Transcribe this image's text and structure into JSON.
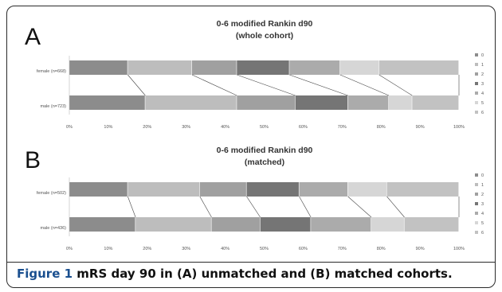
{
  "figure": {
    "caption_label": "Figure 1",
    "caption_text": "mRS day 90 in (A) unmatched and (B) matched cohorts."
  },
  "colors": {
    "categories": [
      "#8c8c8c",
      "#bdbdbd",
      "#a0a0a0",
      "#757575",
      "#ababab",
      "#d6d6d6",
      "#c2c2c2"
    ]
  },
  "chart_data": [
    {
      "type": "bar",
      "stacked": "100%",
      "orientation": "horizontal",
      "panel_label": "A",
      "title": "0-6 modified Rankin d90",
      "subtitle": "(whole cohort)",
      "categories": [
        "female (n=668)",
        "male (n=723)"
      ],
      "series": [
        {
          "name": "0",
          "values": [
            15,
            19.5
          ]
        },
        {
          "name": "1",
          "values": [
            16.5,
            23.5
          ]
        },
        {
          "name": "2",
          "values": [
            11.5,
            15
          ]
        },
        {
          "name": "3",
          "values": [
            13.5,
            13.5
          ]
        },
        {
          "name": "4",
          "values": [
            13,
            10.5
          ]
        },
        {
          "name": "5",
          "values": [
            10,
            6
          ]
        },
        {
          "name": "6",
          "values": [
            20.5,
            12
          ]
        }
      ],
      "xticks": [
        "0%",
        "10%",
        "20%",
        "30%",
        "40%",
        "50%",
        "60%",
        "70%",
        "80%",
        "90%",
        "100%"
      ],
      "xlim": [
        0,
        100
      ],
      "legend": "right",
      "grid": false
    },
    {
      "type": "bar",
      "stacked": "100%",
      "orientation": "horizontal",
      "panel_label": "B",
      "title": "0-6 modified Rankin d90",
      "subtitle": "(matched)",
      "categories": [
        "female (n=502)",
        "male (n=436)"
      ],
      "series": [
        {
          "name": "0",
          "values": [
            15,
            17
          ]
        },
        {
          "name": "1",
          "values": [
            18.5,
            19.5
          ]
        },
        {
          "name": "2",
          "values": [
            12,
            12.5
          ]
        },
        {
          "name": "3",
          "values": [
            13.5,
            13
          ]
        },
        {
          "name": "4",
          "values": [
            12.5,
            15.5
          ]
        },
        {
          "name": "5",
          "values": [
            10,
            8.5
          ]
        },
        {
          "name": "6",
          "values": [
            18.5,
            14
          ]
        }
      ],
      "xticks": [
        "0%",
        "10%",
        "20%",
        "30%",
        "40%",
        "50%",
        "60%",
        "70%",
        "80%",
        "90%",
        "100%"
      ],
      "xlim": [
        0,
        100
      ],
      "legend": "right",
      "grid": false
    }
  ]
}
